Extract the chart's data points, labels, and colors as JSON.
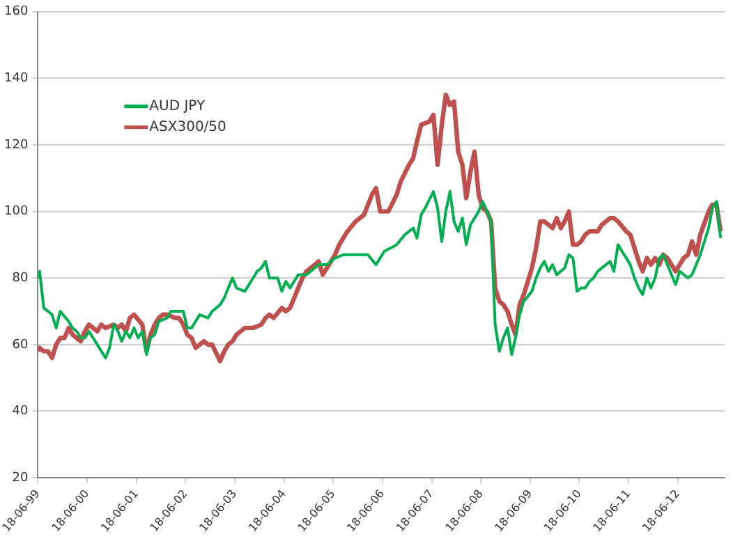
{
  "chart_data": {
    "type": "line",
    "xlim": [
      "1999-06-18",
      "2013-05-31"
    ],
    "xticks": [
      {
        "value": "1999-06-18",
        "label": "18-06-99"
      },
      {
        "value": "2000-06-18",
        "label": "18-06-00"
      },
      {
        "value": "2001-06-18",
        "label": "18-06-01"
      },
      {
        "value": "2002-06-18",
        "label": "18-06-02"
      },
      {
        "value": "2003-06-18",
        "label": "18-06-03"
      },
      {
        "value": "2004-06-18",
        "label": "18-06-04"
      },
      {
        "value": "2005-06-18",
        "label": "18-06-05"
      },
      {
        "value": "2006-06-18",
        "label": "18-06-06"
      },
      {
        "value": "2007-06-18",
        "label": "18-06-07"
      },
      {
        "value": "2008-06-18",
        "label": "18-06-08"
      },
      {
        "value": "2009-06-18",
        "label": "18-06-09"
      },
      {
        "value": "2010-06-18",
        "label": "18-06-10"
      },
      {
        "value": "2011-06-18",
        "label": "18-06-11"
      },
      {
        "value": "2012-06-18",
        "label": "18-06-12"
      }
    ],
    "ylim": [
      20,
      160
    ],
    "yticks": [
      20,
      40,
      60,
      80,
      100,
      120,
      140,
      160
    ],
    "grid": "y",
    "legend": "top left",
    "marker": "none",
    "line_style": "solid",
    "series": [
      {
        "name": "AUD JPY",
        "color": "#00b050",
        "x": [
          "1999-06-18",
          "1999-07",
          "1999-08",
          "1999-09",
          "1999-10",
          "1999-11",
          "1999-12",
          "2000-02",
          "2000-03",
          "2000-04",
          "2000-05",
          "2000-06",
          "2000-07",
          "2000-09",
          "2000-10",
          "2000-11",
          "2000-12",
          "2001-01",
          "2001-02",
          "2001-03",
          "2001-04",
          "2001-05",
          "2001-06",
          "2001-07",
          "2001-08",
          "2001-09",
          "2001-10",
          "2001-11",
          "2001-12",
          "2002-02",
          "2002-03",
          "2002-04",
          "2002-05",
          "2002-06",
          "2002-07",
          "2002-08",
          "2002-09",
          "2002-10",
          "2002-12",
          "2003-01",
          "2003-02",
          "2003-03",
          "2003-04",
          "2003-05",
          "2003-06",
          "2003-07",
          "2003-09",
          "2003-10",
          "2003-11",
          "2003-12",
          "2004-01",
          "2004-02",
          "2004-03",
          "2004-05",
          "2004-06",
          "2004-07",
          "2004-08",
          "2004-10",
          "2004-12",
          "2005-01",
          "2005-03",
          "2005-05",
          "2005-07",
          "2005-09",
          "2005-11",
          "2006-03",
          "2006-05",
          "2006-07",
          "2006-10",
          "2006-12",
          "2007-02",
          "2007-03",
          "2007-04",
          "2007-05",
          "2007-07",
          "2007-08",
          "2007-09",
          "2007-10",
          "2007-11",
          "2007-12",
          "2008-01",
          "2008-02",
          "2008-03",
          "2008-04",
          "2008-06",
          "2008-07",
          "2008-08",
          "2008-09",
          "2008-10",
          "2008-11",
          "2008-12",
          "2009-01",
          "2009-02",
          "2009-03",
          "2009-04",
          "2009-05",
          "2009-07",
          "2009-08",
          "2009-09",
          "2009-10",
          "2009-11",
          "2009-12",
          "2010-01",
          "2010-03",
          "2010-04",
          "2010-05",
          "2010-06",
          "2010-07",
          "2010-08",
          "2010-09",
          "2010-10",
          "2010-11",
          "2010-12",
          "2011-01",
          "2011-02",
          "2011-03",
          "2011-04",
          "2011-05",
          "2011-06",
          "2011-07",
          "2011-08",
          "2011-09",
          "2011-10",
          "2011-11",
          "2011-12",
          "2012-01",
          "2012-02",
          "2012-03",
          "2012-04",
          "2012-06",
          "2012-07",
          "2012-08",
          "2012-09",
          "2012-10",
          "2012-11",
          "2012-12",
          "2013-02",
          "2013-03",
          "2013-04",
          "2013-05"
        ],
        "values": [
          80,
          82,
          71,
          70,
          69,
          65,
          70,
          67,
          65,
          64,
          62,
          62,
          64,
          60,
          58,
          56,
          59,
          66,
          64,
          61,
          64,
          62,
          65,
          62,
          64,
          57,
          62,
          63,
          67,
          68,
          70,
          70,
          70,
          70,
          65,
          65,
          67,
          69,
          68,
          70,
          71,
          72,
          74,
          77,
          80,
          77,
          76,
          78,
          80,
          82,
          83,
          85,
          80,
          80,
          76,
          79,
          77,
          81,
          81,
          82,
          84,
          84,
          86,
          87,
          87,
          87,
          84,
          88,
          90,
          93,
          95,
          92,
          99,
          101,
          106,
          101,
          91,
          100,
          106,
          97,
          94,
          98,
          90,
          96,
          100,
          103,
          100,
          97,
          66,
          58,
          62,
          65,
          57,
          62,
          69,
          73,
          76,
          80,
          83,
          85,
          82,
          84,
          81,
          83,
          87,
          86,
          76,
          77,
          77,
          79,
          80,
          82,
          83,
          84,
          85,
          82,
          90,
          88,
          86,
          84,
          80,
          77,
          75,
          80,
          77,
          80,
          86,
          87,
          84,
          78,
          82,
          81,
          80,
          81,
          84,
          87,
          95,
          101,
          103,
          92
        ]
      },
      {
        "name": "ASX300/50",
        "color": "#c0504d",
        "x": [
          "1999-06-18",
          "1999-07",
          "1999-08",
          "1999-09",
          "1999-10",
          "1999-11",
          "1999-12",
          "2000-01",
          "2000-02",
          "2000-03",
          "2000-05",
          "2000-06",
          "2000-07",
          "2000-08",
          "2000-09",
          "2000-10",
          "2000-11",
          "2001-01",
          "2001-02",
          "2001-03",
          "2001-04",
          "2001-05",
          "2001-06",
          "2001-08",
          "2001-09",
          "2001-10",
          "2001-11",
          "2001-12",
          "2002-01",
          "2002-02",
          "2002-04",
          "2002-05",
          "2002-06",
          "2002-07",
          "2002-08",
          "2002-09",
          "2002-11",
          "2002-12",
          "2003-01",
          "2003-03",
          "2003-04",
          "2003-05",
          "2003-06",
          "2003-07",
          "2003-08",
          "2003-09",
          "2003-11",
          "2004-01",
          "2004-02",
          "2004-03",
          "2004-04",
          "2004-06",
          "2004-07",
          "2004-08",
          "2004-09",
          "2004-10",
          "2004-11",
          "2004-12",
          "2005-02",
          "2005-03",
          "2005-04",
          "2005-05",
          "2005-06",
          "2005-07",
          "2005-08",
          "2005-10",
          "2005-12",
          "2006-02",
          "2006-04",
          "2006-05",
          "2006-06",
          "2006-08",
          "2006-10",
          "2006-11",
          "2007-01",
          "2007-02",
          "2007-03",
          "2007-04",
          "2007-06",
          "2007-07",
          "2007-08",
          "2007-09",
          "2007-10",
          "2007-11",
          "2007-12",
          "2008-01",
          "2008-02",
          "2008-03",
          "2008-04",
          "2008-05",
          "2008-06",
          "2008-07",
          "2008-08",
          "2008-09",
          "2008-10",
          "2008-11",
          "2008-12",
          "2009-01",
          "2009-02",
          "2009-03",
          "2009-04",
          "2009-05",
          "2009-06",
          "2009-07",
          "2009-08",
          "2009-09",
          "2009-10",
          "2009-12",
          "2010-01",
          "2010-02",
          "2010-03",
          "2010-04",
          "2010-05",
          "2010-06",
          "2010-07",
          "2010-08",
          "2010-09",
          "2010-11",
          "2010-12",
          "2011-01",
          "2011-02",
          "2011-03",
          "2011-04",
          "2011-06",
          "2011-07",
          "2011-08",
          "2011-09",
          "2011-10",
          "2011-11",
          "2011-12",
          "2012-01",
          "2012-02",
          "2012-03",
          "2012-04",
          "2012-06",
          "2012-07",
          "2012-08",
          "2012-09",
          "2012-10",
          "2012-11",
          "2012-12",
          "2013-02",
          "2013-03",
          "2013-04",
          "2013-05"
        ],
        "values": [
          58,
          59,
          58,
          58,
          56,
          60,
          62,
          62,
          65,
          63,
          61,
          64,
          66,
          65,
          64,
          66,
          65,
          66,
          65,
          66,
          64,
          68,
          69,
          66,
          58,
          63,
          66,
          68,
          69,
          69,
          68,
          68,
          66,
          63,
          62,
          59,
          61,
          60,
          60,
          55,
          58,
          60,
          61,
          63,
          64,
          65,
          65,
          66,
          68,
          69,
          68,
          71,
          70,
          71,
          74,
          77,
          80,
          82,
          84,
          85,
          81,
          83,
          85,
          87,
          90,
          94,
          97,
          99,
          105,
          107,
          100,
          100,
          105,
          109,
          114,
          116,
          121,
          126,
          127,
          129,
          114,
          126,
          135,
          132,
          133,
          118,
          114,
          104,
          112,
          118,
          105,
          101,
          100,
          97,
          77,
          73,
          72,
          70,
          66,
          63,
          72,
          75,
          79,
          83,
          89,
          97,
          97,
          95,
          98,
          95,
          97,
          100,
          90,
          90,
          91,
          93,
          94,
          94,
          96,
          97,
          98,
          98,
          97,
          94,
          93,
          89,
          85,
          82,
          86,
          84,
          86,
          84,
          87,
          86,
          82,
          84,
          86,
          87,
          91,
          87,
          93,
          100,
          102,
          102,
          94
        ]
      }
    ]
  }
}
